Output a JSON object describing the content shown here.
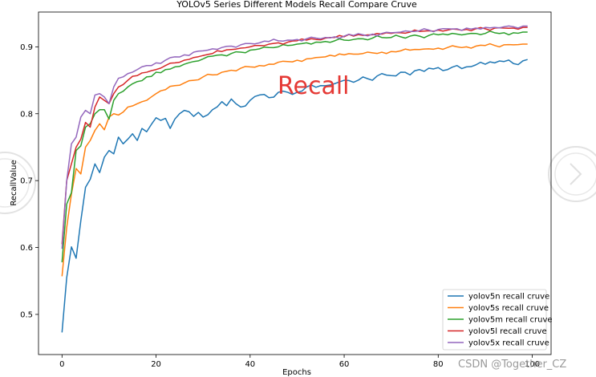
{
  "chart_data": {
    "type": "line",
    "title": "YOLOv5 Series Different Models Recall Compare Cruve",
    "xlabel": "Epochs",
    "ylabel": "RecallValue",
    "xlim": [
      -5,
      104
    ],
    "ylim": [
      0.44,
      0.952
    ],
    "xticks": [
      0,
      20,
      40,
      60,
      80,
      100
    ],
    "yticks": [
      0.5,
      0.6,
      0.7,
      0.8,
      0.9
    ],
    "xtick_labels": [
      "0",
      "20",
      "40",
      "60",
      "80",
      "100"
    ],
    "ytick_labels": [
      "0.5",
      "0.6",
      "0.7",
      "0.8",
      "0.9"
    ],
    "grid": false,
    "legend_position": "bottom-right",
    "annotation": "Recall",
    "watermark": "CSDN @Together_CZ",
    "series": [
      {
        "name": "yolov5n recall cruve",
        "color": "#1f77b4",
        "keypoints": [
          [
            0,
            0.473
          ],
          [
            1,
            0.555
          ],
          [
            2,
            0.601
          ],
          [
            3,
            0.584
          ],
          [
            4,
            0.64
          ],
          [
            5,
            0.69
          ],
          [
            6,
            0.702
          ],
          [
            7,
            0.725
          ],
          [
            8,
            0.712
          ],
          [
            9,
            0.735
          ],
          [
            10,
            0.745
          ],
          [
            11,
            0.74
          ],
          [
            12,
            0.765
          ],
          [
            13,
            0.755
          ],
          [
            14,
            0.762
          ],
          [
            15,
            0.77
          ],
          [
            16,
            0.76
          ],
          [
            17,
            0.778
          ],
          [
            18,
            0.773
          ],
          [
            19,
            0.784
          ],
          [
            20,
            0.794
          ],
          [
            21,
            0.79
          ],
          [
            22,
            0.793
          ],
          [
            23,
            0.778
          ],
          [
            24,
            0.792
          ],
          [
            25,
            0.8
          ],
          [
            26,
            0.805
          ],
          [
            27,
            0.803
          ],
          [
            28,
            0.796
          ],
          [
            29,
            0.802
          ],
          [
            30,
            0.795
          ],
          [
            32,
            0.806
          ],
          [
            34,
            0.818
          ],
          [
            35,
            0.812
          ],
          [
            36,
            0.822
          ],
          [
            38,
            0.81
          ],
          [
            40,
            0.82
          ],
          [
            42,
            0.828
          ],
          [
            44,
            0.824
          ],
          [
            46,
            0.832
          ],
          [
            48,
            0.832
          ],
          [
            50,
            0.832
          ],
          [
            52,
            0.84
          ],
          [
            55,
            0.842
          ],
          [
            58,
            0.845
          ],
          [
            60,
            0.85
          ],
          [
            62,
            0.847
          ],
          [
            64,
            0.855
          ],
          [
            66,
            0.85
          ],
          [
            68,
            0.86
          ],
          [
            70,
            0.857
          ],
          [
            72,
            0.862
          ],
          [
            74,
            0.858
          ],
          [
            76,
            0.866
          ],
          [
            78,
            0.868
          ],
          [
            80,
            0.869
          ],
          [
            82,
            0.866
          ],
          [
            84,
            0.872
          ],
          [
            86,
            0.87
          ],
          [
            88,
            0.873
          ],
          [
            90,
            0.874
          ],
          [
            92,
            0.876
          ],
          [
            94,
            0.878
          ],
          [
            96,
            0.875
          ],
          [
            98,
            0.879
          ],
          [
            99,
            0.881
          ]
        ],
        "noise": 0.004,
        "seed": 11
      },
      {
        "name": "yolov5s recall cruve",
        "color": "#ff7f0e",
        "keypoints": [
          [
            0,
            0.557
          ],
          [
            1,
            0.63
          ],
          [
            2,
            0.68
          ],
          [
            3,
            0.718
          ],
          [
            4,
            0.71
          ],
          [
            5,
            0.75
          ],
          [
            6,
            0.76
          ],
          [
            7,
            0.775
          ],
          [
            8,
            0.785
          ],
          [
            9,
            0.776
          ],
          [
            10,
            0.795
          ],
          [
            11,
            0.8
          ],
          [
            12,
            0.798
          ],
          [
            14,
            0.81
          ],
          [
            16,
            0.815
          ],
          [
            18,
            0.82
          ],
          [
            20,
            0.83
          ],
          [
            22,
            0.836
          ],
          [
            24,
            0.842
          ],
          [
            26,
            0.846
          ],
          [
            28,
            0.85
          ],
          [
            30,
            0.855
          ],
          [
            32,
            0.858
          ],
          [
            34,
            0.862
          ],
          [
            36,
            0.865
          ],
          [
            38,
            0.868
          ],
          [
            40,
            0.87
          ],
          [
            42,
            0.872
          ],
          [
            44,
            0.874
          ],
          [
            46,
            0.877
          ],
          [
            48,
            0.878
          ],
          [
            50,
            0.88
          ],
          [
            52,
            0.882
          ],
          [
            54,
            0.884
          ],
          [
            56,
            0.885
          ],
          [
            58,
            0.886
          ],
          [
            60,
            0.888
          ],
          [
            62,
            0.889
          ],
          [
            64,
            0.89
          ],
          [
            66,
            0.891
          ],
          [
            68,
            0.892
          ],
          [
            70,
            0.893
          ],
          [
            72,
            0.894
          ],
          [
            74,
            0.895
          ],
          [
            76,
            0.896
          ],
          [
            78,
            0.897
          ],
          [
            80,
            0.898
          ],
          [
            82,
            0.899
          ],
          [
            84,
            0.9
          ],
          [
            86,
            0.9
          ],
          [
            88,
            0.901
          ],
          [
            90,
            0.902
          ],
          [
            92,
            0.902
          ],
          [
            94,
            0.903
          ],
          [
            96,
            0.903
          ],
          [
            98,
            0.904
          ],
          [
            99,
            0.904
          ]
        ],
        "noise": 0.003,
        "seed": 23
      },
      {
        "name": "yolov5m recall cruve",
        "color": "#2ca02c",
        "keypoints": [
          [
            0,
            0.578
          ],
          [
            1,
            0.665
          ],
          [
            2,
            0.682
          ],
          [
            3,
            0.745
          ],
          [
            4,
            0.752
          ],
          [
            5,
            0.78
          ],
          [
            6,
            0.785
          ],
          [
            7,
            0.8
          ],
          [
            8,
            0.806
          ],
          [
            9,
            0.806
          ],
          [
            10,
            0.792
          ],
          [
            11,
            0.82
          ],
          [
            12,
            0.83
          ],
          [
            14,
            0.84
          ],
          [
            16,
            0.848
          ],
          [
            18,
            0.855
          ],
          [
            20,
            0.862
          ],
          [
            22,
            0.866
          ],
          [
            24,
            0.87
          ],
          [
            26,
            0.874
          ],
          [
            28,
            0.878
          ],
          [
            30,
            0.882
          ],
          [
            32,
            0.886
          ],
          [
            34,
            0.888
          ],
          [
            36,
            0.89
          ],
          [
            38,
            0.892
          ],
          [
            40,
            0.895
          ],
          [
            42,
            0.897
          ],
          [
            44,
            0.899
          ],
          [
            46,
            0.9
          ],
          [
            48,
            0.902
          ],
          [
            50,
            0.904
          ],
          [
            52,
            0.906
          ],
          [
            54,
            0.907
          ],
          [
            56,
            0.908
          ],
          [
            58,
            0.909
          ],
          [
            60,
            0.91
          ],
          [
            62,
            0.911
          ],
          [
            64,
            0.912
          ],
          [
            66,
            0.913
          ],
          [
            68,
            0.914
          ],
          [
            70,
            0.914
          ],
          [
            72,
            0.915
          ],
          [
            74,
            0.916
          ],
          [
            76,
            0.916
          ],
          [
            78,
            0.917
          ],
          [
            80,
            0.918
          ],
          [
            82,
            0.918
          ],
          [
            84,
            0.919
          ],
          [
            86,
            0.919
          ],
          [
            88,
            0.92
          ],
          [
            90,
            0.92
          ],
          [
            92,
            0.921
          ],
          [
            94,
            0.921
          ],
          [
            96,
            0.921
          ],
          [
            98,
            0.922
          ],
          [
            99,
            0.922
          ]
        ],
        "noise": 0.003,
        "seed": 37
      },
      {
        "name": "yolov5l recall cruve",
        "color": "#d62728",
        "keypoints": [
          [
            0,
            0.605
          ],
          [
            1,
            0.7
          ],
          [
            2,
            0.725
          ],
          [
            3,
            0.75
          ],
          [
            4,
            0.762
          ],
          [
            5,
            0.787
          ],
          [
            6,
            0.78
          ],
          [
            7,
            0.81
          ],
          [
            8,
            0.825
          ],
          [
            9,
            0.82
          ],
          [
            10,
            0.815
          ],
          [
            11,
            0.83
          ],
          [
            12,
            0.84
          ],
          [
            14,
            0.85
          ],
          [
            16,
            0.857
          ],
          [
            18,
            0.862
          ],
          [
            20,
            0.866
          ],
          [
            22,
            0.872
          ],
          [
            24,
            0.876
          ],
          [
            26,
            0.88
          ],
          [
            28,
            0.884
          ],
          [
            30,
            0.887
          ],
          [
            32,
            0.89
          ],
          [
            34,
            0.893
          ],
          [
            36,
            0.896
          ],
          [
            38,
            0.898
          ],
          [
            40,
            0.9
          ],
          [
            42,
            0.902
          ],
          [
            44,
            0.904
          ],
          [
            46,
            0.906
          ],
          [
            48,
            0.907
          ],
          [
            50,
            0.909
          ],
          [
            52,
            0.91
          ],
          [
            54,
            0.911
          ],
          [
            56,
            0.913
          ],
          [
            58,
            0.914
          ],
          [
            60,
            0.915
          ],
          [
            62,
            0.916
          ],
          [
            64,
            0.917
          ],
          [
            66,
            0.918
          ],
          [
            68,
            0.919
          ],
          [
            70,
            0.92
          ],
          [
            72,
            0.921
          ],
          [
            74,
            0.922
          ],
          [
            76,
            0.923
          ],
          [
            78,
            0.924
          ],
          [
            80,
            0.925
          ],
          [
            82,
            0.925
          ],
          [
            84,
            0.926
          ],
          [
            86,
            0.926
          ],
          [
            88,
            0.927
          ],
          [
            90,
            0.927
          ],
          [
            92,
            0.928
          ],
          [
            94,
            0.928
          ],
          [
            96,
            0.928
          ],
          [
            98,
            0.929
          ],
          [
            99,
            0.929
          ]
        ],
        "noise": 0.003,
        "seed": 51
      },
      {
        "name": "yolov5x recall cruve",
        "color": "#9467bd",
        "keypoints": [
          [
            0,
            0.598
          ],
          [
            1,
            0.7
          ],
          [
            2,
            0.755
          ],
          [
            3,
            0.765
          ],
          [
            4,
            0.795
          ],
          [
            5,
            0.805
          ],
          [
            6,
            0.8
          ],
          [
            7,
            0.828
          ],
          [
            8,
            0.83
          ],
          [
            9,
            0.825
          ],
          [
            10,
            0.815
          ],
          [
            11,
            0.84
          ],
          [
            12,
            0.853
          ],
          [
            14,
            0.86
          ],
          [
            16,
            0.866
          ],
          [
            18,
            0.872
          ],
          [
            20,
            0.876
          ],
          [
            22,
            0.88
          ],
          [
            24,
            0.885
          ],
          [
            26,
            0.888
          ],
          [
            28,
            0.892
          ],
          [
            30,
            0.894
          ],
          [
            32,
            0.897
          ],
          [
            34,
            0.899
          ],
          [
            36,
            0.901
          ],
          [
            38,
            0.903
          ],
          [
            40,
            0.905
          ],
          [
            42,
            0.906
          ],
          [
            44,
            0.908
          ],
          [
            46,
            0.909
          ],
          [
            48,
            0.91
          ],
          [
            50,
            0.911
          ],
          [
            52,
            0.912
          ],
          [
            54,
            0.913
          ],
          [
            56,
            0.914
          ],
          [
            58,
            0.915
          ],
          [
            60,
            0.916
          ],
          [
            62,
            0.917
          ],
          [
            64,
            0.918
          ],
          [
            66,
            0.919
          ],
          [
            68,
            0.92
          ],
          [
            70,
            0.921
          ],
          [
            72,
            0.922
          ],
          [
            74,
            0.923
          ],
          [
            76,
            0.924
          ],
          [
            78,
            0.925
          ],
          [
            80,
            0.926
          ],
          [
            82,
            0.927
          ],
          [
            84,
            0.927
          ],
          [
            86,
            0.928
          ],
          [
            88,
            0.928
          ],
          [
            90,
            0.929
          ],
          [
            92,
            0.929
          ],
          [
            94,
            0.93
          ],
          [
            96,
            0.93
          ],
          [
            98,
            0.931
          ],
          [
            99,
            0.931
          ]
        ],
        "noise": 0.003,
        "seed": 67
      }
    ]
  }
}
